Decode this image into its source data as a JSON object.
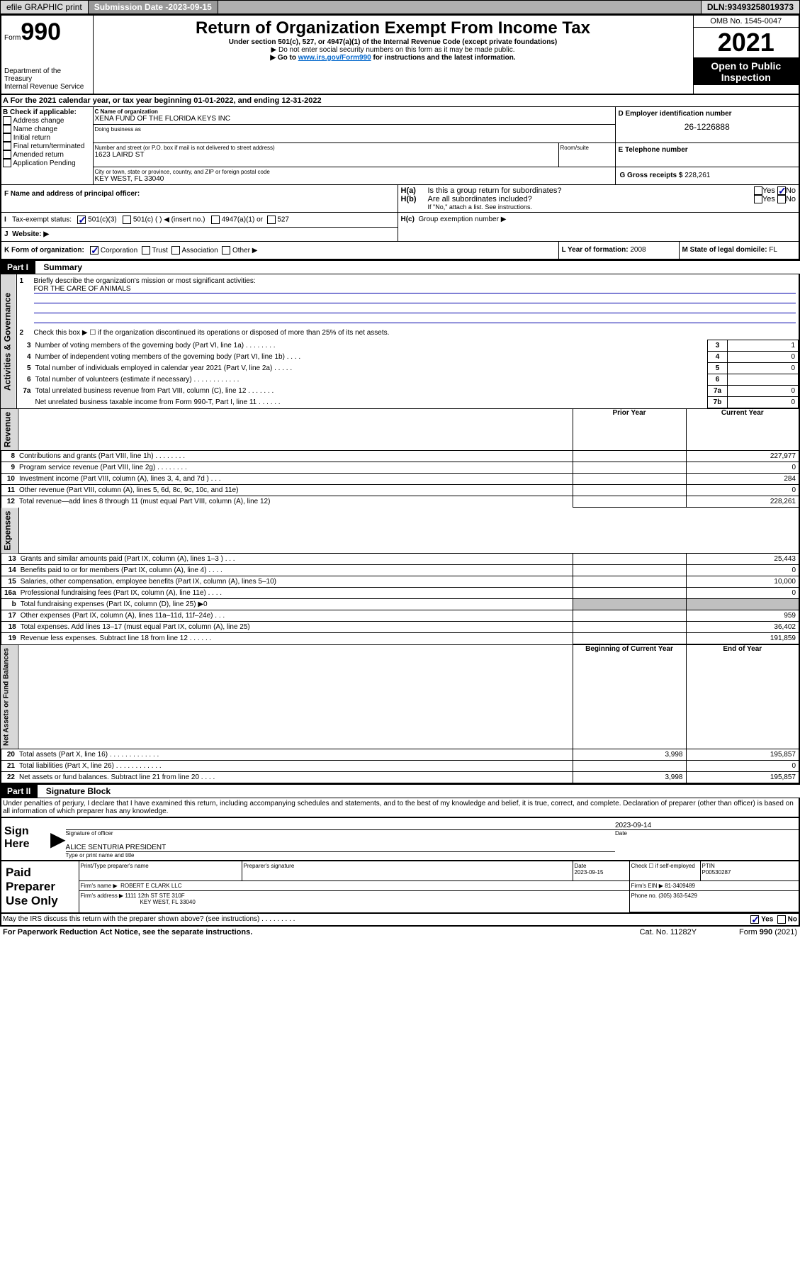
{
  "topbar": {
    "efile": "efile GRAPHIC print",
    "submission_label": "Submission Date - ",
    "submission_date": "2023-09-15",
    "dln_label": "DLN: ",
    "dln": "93493258019373"
  },
  "header": {
    "form_label": "Form",
    "form_number": "990",
    "title": "Return of Organization Exempt From Income Tax",
    "subtitle1": "Under section 501(c), 527, or 4947(a)(1) of the Internal Revenue Code (except private foundations)",
    "subtitle2": "▶ Do not enter social security numbers on this form as it may be made public.",
    "subtitle3_prefix": "▶ Go to ",
    "subtitle3_link": "www.irs.gov/Form990",
    "subtitle3_suffix": " for instructions and the latest information.",
    "dept": "Department of the Treasury\nInternal Revenue Service",
    "omb": "OMB No. 1545-0047",
    "year": "2021",
    "inspection": "Open to Public Inspection"
  },
  "lineA": {
    "prefix": "A For the 2021 calendar year, or tax year beginning ",
    "begin": "01-01-2022",
    "mid": ", and ending ",
    "end": "12-31-2022"
  },
  "boxB": {
    "label": "B Check if applicable:",
    "items": [
      "Address change",
      "Name change",
      "Initial return",
      "Final return/terminated",
      "Amended return",
      "Application Pending"
    ]
  },
  "boxC": {
    "name_label": "C Name of organization",
    "name": "XENA FUND OF THE FLORIDA KEYS INC",
    "dba_label": "Doing business as",
    "addr_label": "Number and street (or P.O. box if mail is not delivered to street address)",
    "room_label": "Room/suite",
    "street": "1623 LAIRD ST",
    "city_label": "City or town, state or province, country, and ZIP or foreign postal code",
    "city": "KEY WEST, FL  33040"
  },
  "boxD": {
    "label": "D Employer identification number",
    "value": "26-1226888"
  },
  "boxE": {
    "label": "E Telephone number"
  },
  "boxG": {
    "label": "G Gross receipts $",
    "value": "228,261"
  },
  "boxF": {
    "label": "F Name and address of principal officer:"
  },
  "boxH": {
    "a_label": "H(a)",
    "a_text": "Is this a group return for subordinates?",
    "b_label": "H(b)",
    "b_text": "Are all subordinates included?",
    "b_note": "If \"No,\" attach a list. See instructions.",
    "c_label": "H(c)",
    "c_text": "Group exemption number ▶",
    "yes": "Yes",
    "no": "No"
  },
  "boxI": {
    "label": "I",
    "text": "Tax-exempt status:",
    "opt1": "501(c)(3)",
    "opt2": "501(c) (  ) ◀ (insert no.)",
    "opt3": "4947(a)(1) or",
    "opt4": "527"
  },
  "boxJ": {
    "label": "J",
    "text": "Website: ▶"
  },
  "boxK": {
    "label": "K Form of organization:",
    "opts": [
      "Corporation",
      "Trust",
      "Association",
      "Other ▶"
    ]
  },
  "boxL": {
    "label": "L Year of formation:",
    "value": "2008"
  },
  "boxM": {
    "label": "M State of legal domicile:",
    "value": "FL"
  },
  "partI": {
    "label": "Part I",
    "title": "Summary",
    "line1_label": "1",
    "line1_text": "Briefly describe the organization's mission or most significant activities:",
    "line1_value": "FOR THE CARE OF ANIMALS",
    "line2_label": "2",
    "line2_text": "Check this box ▶ ☐ if the organization discontinued its operations or disposed of more than 25% of its net assets.",
    "sec_governance": "Activities & Governance",
    "sec_revenue": "Revenue",
    "sec_expenses": "Expenses",
    "sec_netassets": "Net Assets or Fund Balances",
    "prior_year": "Prior Year",
    "current_year": "Current Year",
    "begin_year": "Beginning of Current Year",
    "end_year": "End of Year",
    "rows_gov": [
      {
        "n": "3",
        "t": "Number of voting members of the governing body (Part VI, line 1a)  .   .   .   .   .   .   .   .",
        "box": "3",
        "v": "1"
      },
      {
        "n": "4",
        "t": "Number of independent voting members of the governing body (Part VI, line 1b)  .   .   .   .",
        "box": "4",
        "v": "0"
      },
      {
        "n": "5",
        "t": "Total number of individuals employed in calendar year 2021 (Part V, line 2a)  .   .   .   .   .",
        "box": "5",
        "v": "0"
      },
      {
        "n": "6",
        "t": "Total number of volunteers (estimate if necessary)  .   .   .   .   .   .   .   .   .   .   .   .",
        "box": "6",
        "v": ""
      },
      {
        "n": "7a",
        "t": "Total unrelated business revenue from Part VIII, column (C), line 12  .   .   .   .   .   .   .",
        "box": "7a",
        "v": "0"
      },
      {
        "n": "",
        "t": "Net unrelated business taxable income from Form 990-T, Part I, line 11  .   .   .   .   .   .",
        "box": "7b",
        "v": "0"
      }
    ],
    "rows_rev": [
      {
        "n": "8",
        "t": "Contributions and grants (Part VIII, line 1h)  .   .   .   .   .   .   .   .",
        "p": "",
        "c": "227,977"
      },
      {
        "n": "9",
        "t": "Program service revenue (Part VIII, line 2g)  .   .   .   .   .   .   .   .",
        "p": "",
        "c": "0"
      },
      {
        "n": "10",
        "t": "Investment income (Part VIII, column (A), lines 3, 4, and 7d )  .   .   .",
        "p": "",
        "c": "284"
      },
      {
        "n": "11",
        "t": "Other revenue (Part VIII, column (A), lines 5, 6d, 8c, 9c, 10c, and 11e)",
        "p": "",
        "c": "0"
      },
      {
        "n": "12",
        "t": "Total revenue—add lines 8 through 11 (must equal Part VIII, column (A), line 12)",
        "p": "",
        "c": "228,261"
      }
    ],
    "rows_exp": [
      {
        "n": "13",
        "t": "Grants and similar amounts paid (Part IX, column (A), lines 1–3 )  .   .   .",
        "p": "",
        "c": "25,443"
      },
      {
        "n": "14",
        "t": "Benefits paid to or for members (Part IX, column (A), line 4)  .   .   .   .",
        "p": "",
        "c": "0"
      },
      {
        "n": "15",
        "t": "Salaries, other compensation, employee benefits (Part IX, column (A), lines 5–10)",
        "p": "",
        "c": "10,000"
      },
      {
        "n": "16a",
        "t": "Professional fundraising fees (Part IX, column (A), line 11e)  .   .   .   .",
        "p": "",
        "c": "0"
      },
      {
        "n": "b",
        "t": "Total fundraising expenses (Part IX, column (D), line 25) ▶0",
        "p": "gray",
        "c": "gray"
      },
      {
        "n": "17",
        "t": "Other expenses (Part IX, column (A), lines 11a–11d, 11f–24e)  .   .   .",
        "p": "",
        "c": "959"
      },
      {
        "n": "18",
        "t": "Total expenses. Add lines 13–17 (must equal Part IX, column (A), line 25)",
        "p": "",
        "c": "36,402"
      },
      {
        "n": "19",
        "t": "Revenue less expenses. Subtract line 18 from line 12  .   .   .   .   .   .",
        "p": "",
        "c": "191,859"
      }
    ],
    "rows_net": [
      {
        "n": "20",
        "t": "Total assets (Part X, line 16)  .   .   .   .   .   .   .   .   .   .   .   .   .",
        "p": "3,998",
        "c": "195,857"
      },
      {
        "n": "21",
        "t": "Total liabilities (Part X, line 26)  .   .   .   .   .   .   .   .   .   .   .   .",
        "p": "",
        "c": "0"
      },
      {
        "n": "22",
        "t": "Net assets or fund balances. Subtract line 21 from line 20  .   .   .   .",
        "p": "3,998",
        "c": "195,857"
      }
    ]
  },
  "partII": {
    "label": "Part II",
    "title": "Signature Block",
    "declaration": "Under penalties of perjury, I declare that I have examined this return, including accompanying schedules and statements, and to the best of my knowledge and belief, it is true, correct, and complete. Declaration of preparer (other than officer) is based on all information of which preparer has any knowledge.",
    "sign_here": "Sign Here",
    "sig_officer": "Signature of officer",
    "sig_date": "Date",
    "sig_date_val": "2023-09-14",
    "sig_name": "ALICE SENTURIA  PRESIDENT",
    "sig_name_label": "Type or print name and title",
    "paid_label": "Paid Preparer Use Only",
    "prep_name_label": "Print/Type preparer's name",
    "prep_sig_label": "Preparer's signature",
    "prep_date_label": "Date",
    "prep_date": "2023-09-15",
    "prep_check_label": "Check ☐ if self-employed",
    "ptin_label": "PTIN",
    "ptin": "P00530287",
    "firm_name_label": "Firm's name    ▶",
    "firm_name": "ROBERT E CLARK LLC",
    "firm_ein_label": "Firm's EIN ▶",
    "firm_ein": "81-3409489",
    "firm_addr_label": "Firm's address ▶",
    "firm_addr1": "1111 12th ST STE 310F",
    "firm_addr2": "KEY WEST, FL  33040",
    "phone_label": "Phone no.",
    "phone": "(305) 363-5429",
    "discuss": "May the IRS discuss this return with the preparer shown above? (see instructions)  .   .   .   .   .   .   .   .   .",
    "yes": "Yes",
    "no": "No"
  },
  "footer": {
    "paperwork": "For Paperwork Reduction Act Notice, see the separate instructions.",
    "cat": "Cat. No. 11282Y",
    "form": "Form 990 (2021)"
  }
}
